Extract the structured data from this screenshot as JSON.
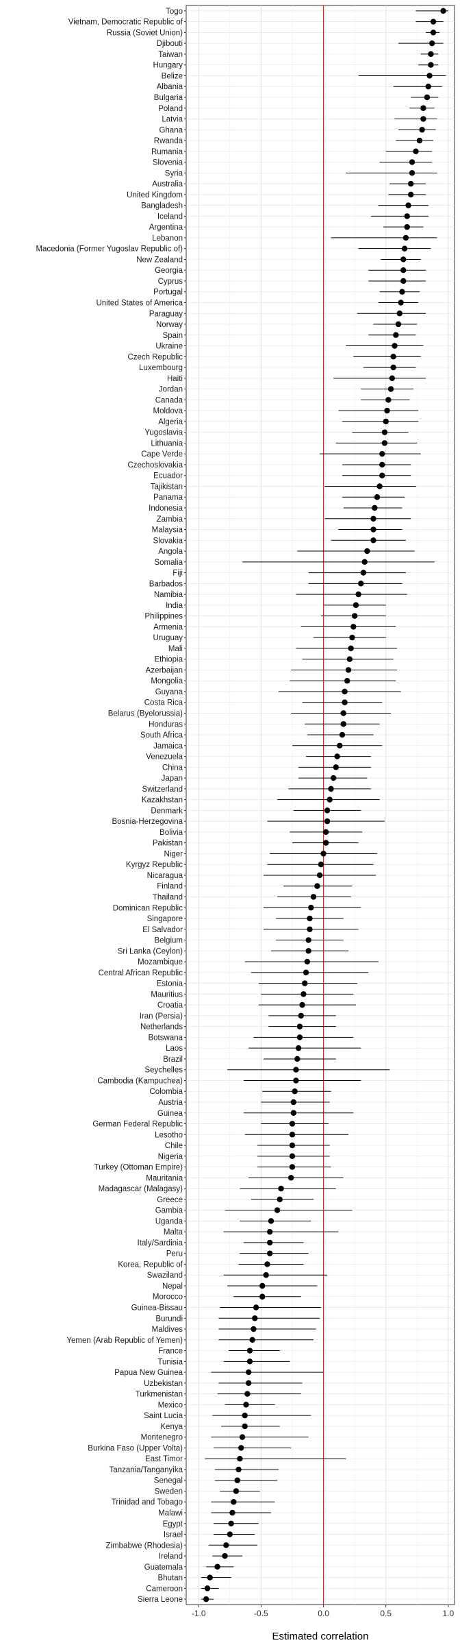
{
  "chart_data": {
    "type": "dot-interval",
    "title": "",
    "xlabel": "Estimated correlation",
    "ylabel": "",
    "xlim": [
      -1.1,
      1.05
    ],
    "x_ticks": [
      -1.0,
      -0.5,
      0.0,
      0.5,
      1.0
    ],
    "x_tick_labels": [
      "-1.0",
      "-0.5",
      "0.0",
      "0.5",
      "1.0"
    ],
    "reference_line": {
      "x": 0,
      "color": "#e8241f"
    },
    "grid": true,
    "rows": [
      {
        "label": "Togo",
        "value": 0.96,
        "lo": 0.74,
        "hi": 1.0
      },
      {
        "label": "Vietnam, Democratic Republic of",
        "value": 0.88,
        "lo": 0.74,
        "hi": 0.96
      },
      {
        "label": "Russia (Soviet Union)",
        "value": 0.88,
        "lo": 0.82,
        "hi": 0.93
      },
      {
        "label": "Djibouti",
        "value": 0.87,
        "lo": 0.6,
        "hi": 0.96
      },
      {
        "label": "Taiwan",
        "value": 0.86,
        "lo": 0.78,
        "hi": 0.92
      },
      {
        "label": "Hungary",
        "value": 0.86,
        "lo": 0.76,
        "hi": 0.92
      },
      {
        "label": "Belize",
        "value": 0.85,
        "lo": 0.28,
        "hi": 0.98
      },
      {
        "label": "Albania",
        "value": 0.84,
        "lo": 0.56,
        "hi": 0.95
      },
      {
        "label": "Bulgaria",
        "value": 0.83,
        "lo": 0.7,
        "hi": 0.92
      },
      {
        "label": "Poland",
        "value": 0.8,
        "lo": 0.69,
        "hi": 0.89
      },
      {
        "label": "Latvia",
        "value": 0.8,
        "lo": 0.57,
        "hi": 0.91
      },
      {
        "label": "Ghana",
        "value": 0.79,
        "lo": 0.6,
        "hi": 0.9
      },
      {
        "label": "Rwanda",
        "value": 0.77,
        "lo": 0.58,
        "hi": 0.88
      },
      {
        "label": "Rumania",
        "value": 0.74,
        "lo": 0.5,
        "hi": 0.87
      },
      {
        "label": "Slovenia",
        "value": 0.71,
        "lo": 0.45,
        "hi": 0.87
      },
      {
        "label": "Syria",
        "value": 0.71,
        "lo": 0.18,
        "hi": 0.91
      },
      {
        "label": "Australia",
        "value": 0.7,
        "lo": 0.53,
        "hi": 0.82
      },
      {
        "label": "United Kingdom",
        "value": 0.7,
        "lo": 0.52,
        "hi": 0.82
      },
      {
        "label": "Bangladesh",
        "value": 0.68,
        "lo": 0.44,
        "hi": 0.84
      },
      {
        "label": "Iceland",
        "value": 0.67,
        "lo": 0.38,
        "hi": 0.84
      },
      {
        "label": "Argentina",
        "value": 0.67,
        "lo": 0.48,
        "hi": 0.8
      },
      {
        "label": "Lebanon",
        "value": 0.66,
        "lo": 0.06,
        "hi": 0.91
      },
      {
        "label": "Macedonia (Former Yugoslav Republic of)",
        "value": 0.65,
        "lo": 0.28,
        "hi": 0.86
      },
      {
        "label": "New Zealand",
        "value": 0.64,
        "lo": 0.46,
        "hi": 0.78
      },
      {
        "label": "Georgia",
        "value": 0.64,
        "lo": 0.36,
        "hi": 0.82
      },
      {
        "label": "Cyprus",
        "value": 0.64,
        "lo": 0.36,
        "hi": 0.82
      },
      {
        "label": "Portugal",
        "value": 0.63,
        "lo": 0.45,
        "hi": 0.77
      },
      {
        "label": "United States of America",
        "value": 0.62,
        "lo": 0.44,
        "hi": 0.76
      },
      {
        "label": "Paraguay",
        "value": 0.61,
        "lo": 0.27,
        "hi": 0.82
      },
      {
        "label": "Norway",
        "value": 0.6,
        "lo": 0.4,
        "hi": 0.75
      },
      {
        "label": "Spain",
        "value": 0.58,
        "lo": 0.36,
        "hi": 0.74
      },
      {
        "label": "Ukraine",
        "value": 0.57,
        "lo": 0.18,
        "hi": 0.8
      },
      {
        "label": "Czech Republic",
        "value": 0.56,
        "lo": 0.24,
        "hi": 0.78
      },
      {
        "label": "Luxembourg",
        "value": 0.56,
        "lo": 0.32,
        "hi": 0.74
      },
      {
        "label": "Haiti",
        "value": 0.55,
        "lo": 0.08,
        "hi": 0.82
      },
      {
        "label": "Jordan",
        "value": 0.54,
        "lo": 0.3,
        "hi": 0.72
      },
      {
        "label": "Canada",
        "value": 0.52,
        "lo": 0.3,
        "hi": 0.69
      },
      {
        "label": "Moldova",
        "value": 0.51,
        "lo": 0.12,
        "hi": 0.76
      },
      {
        "label": "Algeria",
        "value": 0.5,
        "lo": 0.15,
        "hi": 0.76
      },
      {
        "label": "Yugoslavia",
        "value": 0.49,
        "lo": 0.23,
        "hi": 0.68
      },
      {
        "label": "Lithuania",
        "value": 0.49,
        "lo": 0.1,
        "hi": 0.75
      },
      {
        "label": "Cape Verde",
        "value": 0.47,
        "lo": -0.03,
        "hi": 0.78
      },
      {
        "label": "Czechoslovakia",
        "value": 0.47,
        "lo": 0.15,
        "hi": 0.7
      },
      {
        "label": "Ecuador",
        "value": 0.47,
        "lo": 0.15,
        "hi": 0.7
      },
      {
        "label": "Tajikistan",
        "value": 0.45,
        "lo": 0.01,
        "hi": 0.74
      },
      {
        "label": "Panama",
        "value": 0.43,
        "lo": 0.15,
        "hi": 0.65
      },
      {
        "label": "Indonesia",
        "value": 0.41,
        "lo": 0.16,
        "hi": 0.63
      },
      {
        "label": "Zambia",
        "value": 0.4,
        "lo": 0.01,
        "hi": 0.7
      },
      {
        "label": "Malaysia",
        "value": 0.4,
        "lo": 0.12,
        "hi": 0.63
      },
      {
        "label": "Slovakia",
        "value": 0.4,
        "lo": 0.06,
        "hi": 0.66
      },
      {
        "label": "Angola",
        "value": 0.35,
        "lo": -0.21,
        "hi": 0.73
      },
      {
        "label": "Somalia",
        "value": 0.33,
        "lo": -0.65,
        "hi": 0.89
      },
      {
        "label": "Fiji",
        "value": 0.32,
        "lo": -0.12,
        "hi": 0.66
      },
      {
        "label": "Barbados",
        "value": 0.3,
        "lo": -0.12,
        "hi": 0.63
      },
      {
        "label": "Namibia",
        "value": 0.28,
        "lo": -0.22,
        "hi": 0.67
      },
      {
        "label": "India",
        "value": 0.26,
        "lo": 0.0,
        "hi": 0.5
      },
      {
        "label": "Philippines",
        "value": 0.25,
        "lo": -0.02,
        "hi": 0.5
      },
      {
        "label": "Armenia",
        "value": 0.24,
        "lo": -0.18,
        "hi": 0.58
      },
      {
        "label": "Uruguay",
        "value": 0.23,
        "lo": -0.08,
        "hi": 0.5
      },
      {
        "label": "Mali",
        "value": 0.22,
        "lo": -0.22,
        "hi": 0.59
      },
      {
        "label": "Ethiopia",
        "value": 0.21,
        "lo": -0.17,
        "hi": 0.56
      },
      {
        "label": "Azerbaijan",
        "value": 0.2,
        "lo": -0.26,
        "hi": 0.59
      },
      {
        "label": "Mongolia",
        "value": 0.19,
        "lo": -0.27,
        "hi": 0.58
      },
      {
        "label": "Guyana",
        "value": 0.17,
        "lo": -0.36,
        "hi": 0.62
      },
      {
        "label": "Costa Rica",
        "value": 0.17,
        "lo": -0.17,
        "hi": 0.47
      },
      {
        "label": "Belarus (Byelorussia)",
        "value": 0.16,
        "lo": -0.26,
        "hi": 0.54
      },
      {
        "label": "Honduras",
        "value": 0.16,
        "lo": -0.15,
        "hi": 0.45
      },
      {
        "label": "South Africa",
        "value": 0.15,
        "lo": -0.13,
        "hi": 0.4
      },
      {
        "label": "Jamaica",
        "value": 0.13,
        "lo": -0.25,
        "hi": 0.47
      },
      {
        "label": "Venezuela",
        "value": 0.11,
        "lo": -0.14,
        "hi": 0.38
      },
      {
        "label": "China",
        "value": 0.1,
        "lo": -0.2,
        "hi": 0.38
      },
      {
        "label": "Japan",
        "value": 0.08,
        "lo": -0.2,
        "hi": 0.35
      },
      {
        "label": "Switzerland",
        "value": 0.06,
        "lo": -0.28,
        "hi": 0.38
      },
      {
        "label": "Kazakhstan",
        "value": 0.05,
        "lo": -0.37,
        "hi": 0.45
      },
      {
        "label": "Denmark",
        "value": 0.03,
        "lo": -0.24,
        "hi": 0.3
      },
      {
        "label": "Bosnia-Herzegovina",
        "value": 0.03,
        "lo": -0.45,
        "hi": 0.49
      },
      {
        "label": "Bolivia",
        "value": 0.02,
        "lo": -0.27,
        "hi": 0.31
      },
      {
        "label": "Pakistan",
        "value": 0.02,
        "lo": -0.25,
        "hi": 0.28
      },
      {
        "label": "Niger",
        "value": 0.0,
        "lo": -0.43,
        "hi": 0.43
      },
      {
        "label": "Kyrgyz Republic",
        "value": -0.02,
        "lo": -0.45,
        "hi": 0.4
      },
      {
        "label": "Nicaragua",
        "value": -0.03,
        "lo": -0.48,
        "hi": 0.42
      },
      {
        "label": "Finland",
        "value": -0.05,
        "lo": -0.32,
        "hi": 0.23
      },
      {
        "label": "Thailand",
        "value": -0.08,
        "lo": -0.37,
        "hi": 0.22
      },
      {
        "label": "Dominican Republic",
        "value": -0.1,
        "lo": -0.48,
        "hi": 0.3
      },
      {
        "label": "Singapore",
        "value": -0.11,
        "lo": -0.38,
        "hi": 0.16
      },
      {
        "label": "El Salvador",
        "value": -0.11,
        "lo": -0.48,
        "hi": 0.28
      },
      {
        "label": "Belgium",
        "value": -0.12,
        "lo": -0.38,
        "hi": 0.16
      },
      {
        "label": "Sri Lanka (Ceylon)",
        "value": -0.12,
        "lo": -0.42,
        "hi": 0.2
      },
      {
        "label": "Mozambique",
        "value": -0.13,
        "lo": -0.63,
        "hi": 0.44
      },
      {
        "label": "Central African Republic",
        "value": -0.14,
        "lo": -0.58,
        "hi": 0.36
      },
      {
        "label": "Estonia",
        "value": -0.15,
        "lo": -0.52,
        "hi": 0.27
      },
      {
        "label": "Mauritius",
        "value": -0.16,
        "lo": -0.5,
        "hi": 0.24
      },
      {
        "label": "Croatia",
        "value": -0.17,
        "lo": -0.52,
        "hi": 0.26
      },
      {
        "label": "Iran (Persia)",
        "value": -0.18,
        "lo": -0.44,
        "hi": 0.1
      },
      {
        "label": "Netherlands",
        "value": -0.19,
        "lo": -0.44,
        "hi": 0.1
      },
      {
        "label": "Botswana",
        "value": -0.19,
        "lo": -0.56,
        "hi": 0.24
      },
      {
        "label": "Laos",
        "value": -0.2,
        "lo": -0.6,
        "hi": 0.3
      },
      {
        "label": "Brazil",
        "value": -0.21,
        "lo": -0.48,
        "hi": 0.1
      },
      {
        "label": "Seychelles",
        "value": -0.22,
        "lo": -0.77,
        "hi": 0.53
      },
      {
        "label": "Cambodia (Kampuchea)",
        "value": -0.22,
        "lo": -0.64,
        "hi": 0.3
      },
      {
        "label": "Colombia",
        "value": -0.23,
        "lo": -0.49,
        "hi": 0.06
      },
      {
        "label": "Austria",
        "value": -0.24,
        "lo": -0.5,
        "hi": 0.05
      },
      {
        "label": "Guinea",
        "value": -0.24,
        "lo": -0.64,
        "hi": 0.24
      },
      {
        "label": "German Federal Republic",
        "value": -0.25,
        "lo": -0.5,
        "hi": 0.04
      },
      {
        "label": "Lesotho",
        "value": -0.25,
        "lo": -0.63,
        "hi": 0.2
      },
      {
        "label": "Chile",
        "value": -0.25,
        "lo": -0.53,
        "hi": 0.05
      },
      {
        "label": "Nigeria",
        "value": -0.25,
        "lo": -0.53,
        "hi": 0.05
      },
      {
        "label": "Turkey (Ottoman Empire)",
        "value": -0.25,
        "lo": -0.53,
        "hi": 0.06
      },
      {
        "label": "Mauritania",
        "value": -0.26,
        "lo": -0.6,
        "hi": 0.16
      },
      {
        "label": "Madagascar (Malagasy)",
        "value": -0.34,
        "lo": -0.67,
        "hi": 0.1
      },
      {
        "label": "Greece",
        "value": -0.35,
        "lo": -0.58,
        "hi": -0.08
      },
      {
        "label": "Gambia",
        "value": -0.37,
        "lo": -0.79,
        "hi": 0.23
      },
      {
        "label": "Uganda",
        "value": -0.42,
        "lo": -0.67,
        "hi": -0.1
      },
      {
        "label": "Malta",
        "value": -0.43,
        "lo": -0.8,
        "hi": 0.12
      },
      {
        "label": "Italy/Sardinia",
        "value": -0.43,
        "lo": -0.64,
        "hi": -0.16
      },
      {
        "label": "Peru",
        "value": -0.43,
        "lo": -0.67,
        "hi": -0.12
      },
      {
        "label": "Korea, Republic of",
        "value": -0.45,
        "lo": -0.68,
        "hi": -0.16
      },
      {
        "label": "Swaziland",
        "value": -0.46,
        "lo": -0.8,
        "hi": 0.03
      },
      {
        "label": "Nepal",
        "value": -0.49,
        "lo": -0.77,
        "hi": -0.05
      },
      {
        "label": "Morocco",
        "value": -0.49,
        "lo": -0.72,
        "hi": -0.18
      },
      {
        "label": "Guinea-Bissau",
        "value": -0.54,
        "lo": -0.83,
        "hi": -0.02
      },
      {
        "label": "Burundi",
        "value": -0.55,
        "lo": -0.84,
        "hi": -0.03
      },
      {
        "label": "Maldives",
        "value": -0.56,
        "lo": -0.84,
        "hi": -0.06
      },
      {
        "label": "Yemen (Arab Republic of Yemen)",
        "value": -0.57,
        "lo": -0.84,
        "hi": -0.08
      },
      {
        "label": "France",
        "value": -0.59,
        "lo": -0.76,
        "hi": -0.35
      },
      {
        "label": "Tunisia",
        "value": -0.59,
        "lo": -0.8,
        "hi": -0.27
      },
      {
        "label": "Papua New Guinea",
        "value": -0.6,
        "lo": -0.9,
        "hi": 0.0
      },
      {
        "label": "Uzbekistan",
        "value": -0.6,
        "lo": -0.84,
        "hi": -0.17
      },
      {
        "label": "Turkmenistan",
        "value": -0.61,
        "lo": -0.85,
        "hi": -0.18
      },
      {
        "label": "Mexico",
        "value": -0.62,
        "lo": -0.79,
        "hi": -0.39
      },
      {
        "label": "Saint Lucia",
        "value": -0.63,
        "lo": -0.89,
        "hi": -0.1
      },
      {
        "label": "Kenya",
        "value": -0.63,
        "lo": -0.82,
        "hi": -0.35
      },
      {
        "label": "Montenegro",
        "value": -0.65,
        "lo": -0.9,
        "hi": -0.12
      },
      {
        "label": "Burkina Faso (Upper Volta)",
        "value": -0.66,
        "lo": -0.88,
        "hi": -0.26
      },
      {
        "label": "East Timor",
        "value": -0.67,
        "lo": -0.95,
        "hi": 0.18
      },
      {
        "label": "Tanzania/Tanganyika",
        "value": -0.68,
        "lo": -0.87,
        "hi": -0.36
      },
      {
        "label": "Senegal",
        "value": -0.69,
        "lo": -0.87,
        "hi": -0.37
      },
      {
        "label": "Sweden",
        "value": -0.7,
        "lo": -0.83,
        "hi": -0.51
      },
      {
        "label": "Trinidad and Tobago",
        "value": -0.72,
        "lo": -0.9,
        "hi": -0.39
      },
      {
        "label": "Malawi",
        "value": -0.73,
        "lo": -0.9,
        "hi": -0.42
      },
      {
        "label": "Egypt",
        "value": -0.74,
        "lo": -0.88,
        "hi": -0.52
      },
      {
        "label": "Israel",
        "value": -0.75,
        "lo": -0.88,
        "hi": -0.55
      },
      {
        "label": "Zimbabwe (Rhodesia)",
        "value": -0.78,
        "lo": -0.92,
        "hi": -0.53
      },
      {
        "label": "Ireland",
        "value": -0.79,
        "lo": -0.89,
        "hi": -0.65
      },
      {
        "label": "Guatemala",
        "value": -0.85,
        "lo": -0.94,
        "hi": -0.72
      },
      {
        "label": "Bhutan",
        "value": -0.91,
        "lo": -0.98,
        "hi": -0.74
      },
      {
        "label": "Cameroon",
        "value": -0.93,
        "lo": -0.98,
        "hi": -0.84
      },
      {
        "label": "Sierra Leone",
        "value": -0.94,
        "lo": -0.98,
        "hi": -0.88
      }
    ]
  }
}
